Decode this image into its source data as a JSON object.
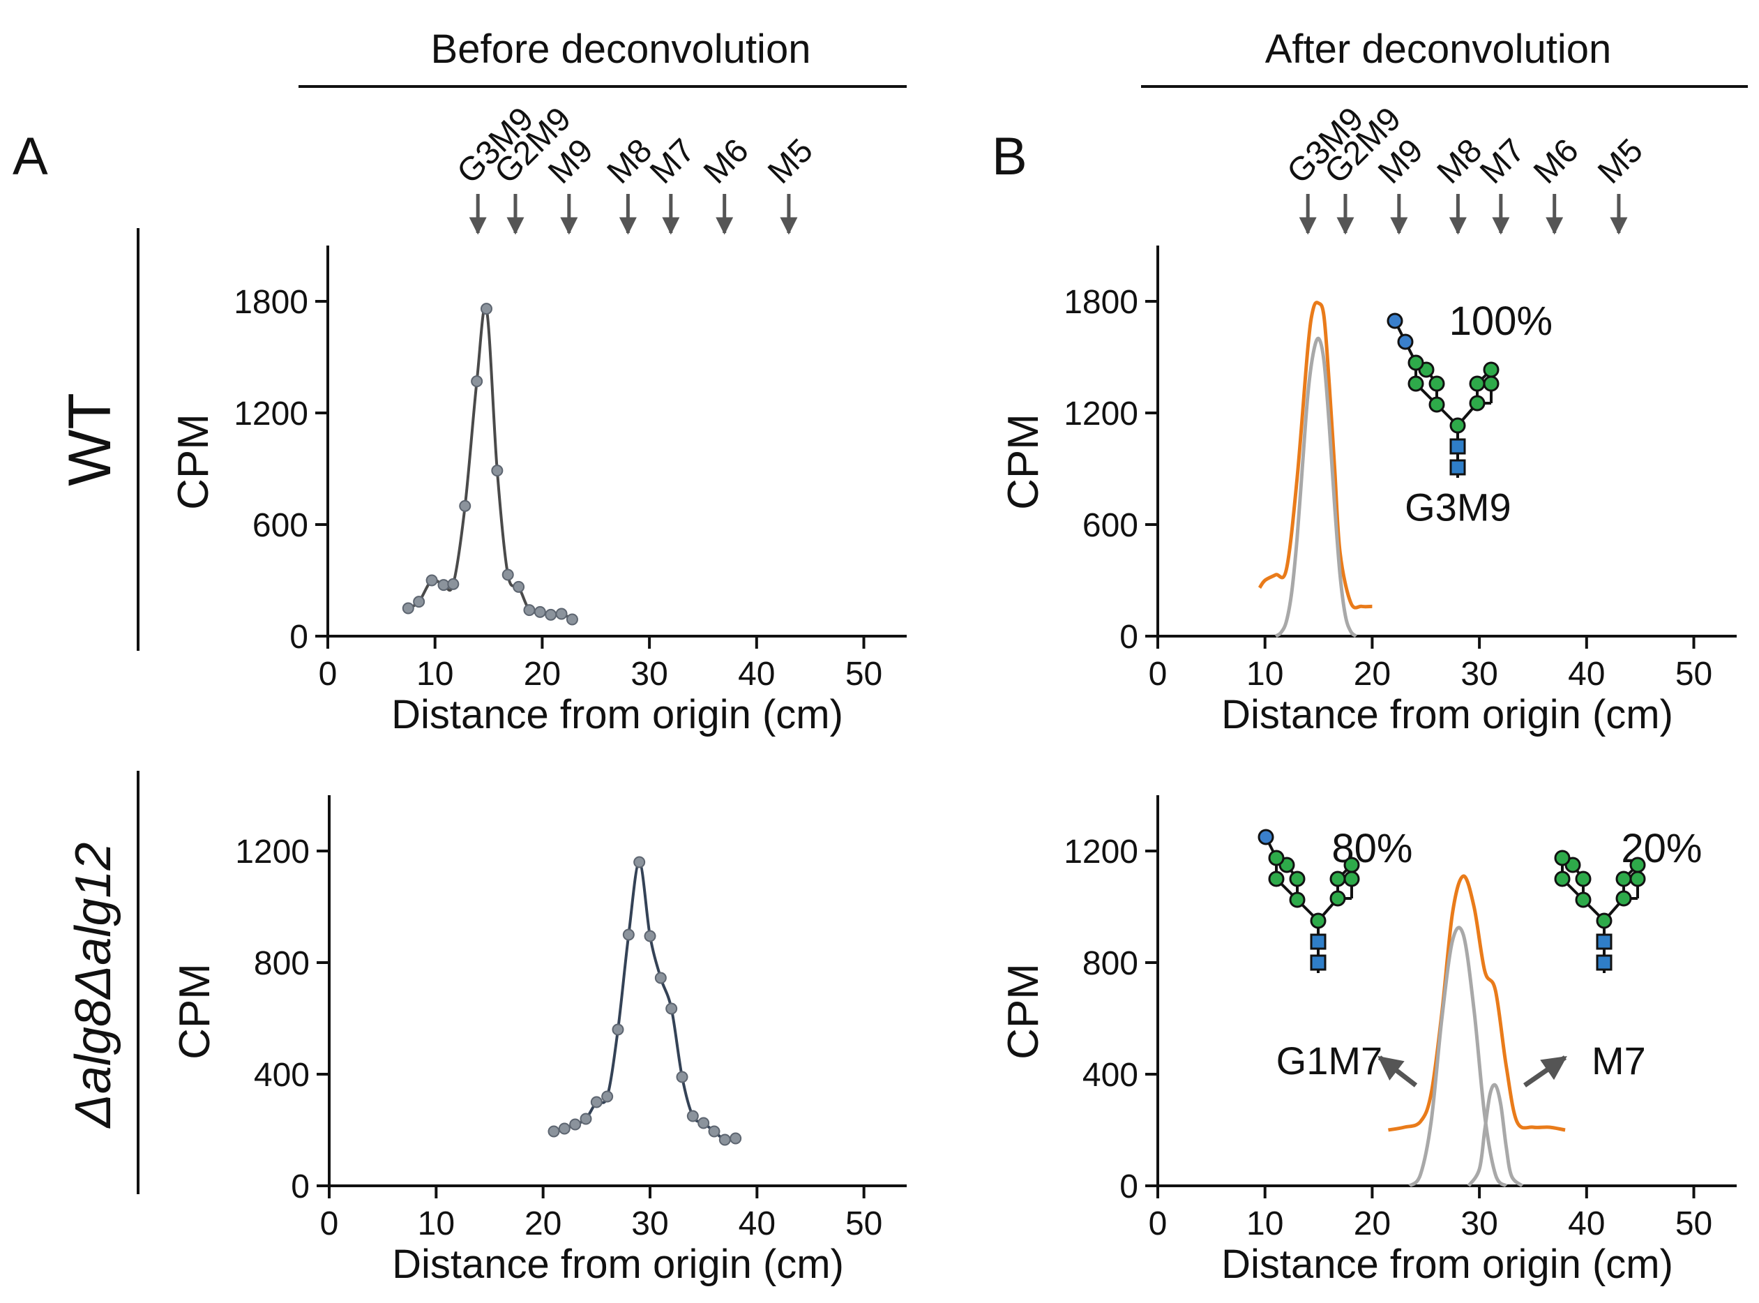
{
  "header": {
    "before_title": "Before deconvolution",
    "after_title": "After deconvolution",
    "panel_a": "A",
    "panel_b": "B",
    "row_top_label": "WT",
    "row_bottom_label": "Δalg8Δalg12"
  },
  "markers": {
    "labels": [
      "G3M9",
      "G2M9",
      "M9",
      "M8",
      "M7",
      "M6",
      "M5"
    ],
    "positions_cm": [
      14,
      17.5,
      22.5,
      28,
      32,
      37,
      43
    ]
  },
  "glycan": {
    "colors": {
      "mannose": "#2eaa4a",
      "glucose": "#3a7fcb",
      "glcnac": "#2f7ec8",
      "stroke": "#111111"
    }
  },
  "chart_data": [
    {
      "id": "wt-before",
      "type": "line",
      "xlabel": "Distance from origin (cm)",
      "ylabel": "CPM",
      "xlim": [
        0,
        54
      ],
      "ylim": [
        0,
        2100
      ],
      "xticks": [
        0,
        10,
        20,
        30,
        40,
        50
      ],
      "yticks": [
        0,
        600,
        1200,
        1800
      ],
      "series": [
        {
          "style": "points-line",
          "color": "#4a4a4a",
          "x": [
            7.5,
            8.5,
            9.7,
            10.8,
            11.7,
            12.8,
            13.9,
            14.8,
            15.8,
            16.8,
            17.8,
            18.8,
            19.8,
            20.8,
            21.8,
            22.8
          ],
          "y": [
            150,
            185,
            300,
            275,
            280,
            700,
            1370,
            1760,
            890,
            330,
            265,
            140,
            130,
            115,
            120,
            90
          ]
        }
      ]
    },
    {
      "id": "wt-after",
      "type": "line",
      "xlabel": "Distance from origin (cm)",
      "ylabel": "CPM",
      "xlim": [
        0,
        54
      ],
      "ylim": [
        0,
        2100
      ],
      "xticks": [
        0,
        10,
        20,
        30,
        40,
        50
      ],
      "yticks": [
        0,
        600,
        1200,
        1800
      ],
      "series": [
        {
          "style": "line",
          "color": "#e97b1a",
          "x": [
            9.5,
            10,
            11,
            12,
            13,
            14,
            14.5,
            15,
            15.5,
            16,
            16.5,
            17,
            18,
            19,
            20
          ],
          "y": [
            260,
            300,
            330,
            360,
            850,
            1550,
            1760,
            1790,
            1720,
            1350,
            900,
            450,
            180,
            160,
            160
          ]
        },
        {
          "style": "line",
          "color": "#a8a8a8",
          "x": [
            11,
            11.5,
            12,
            12.5,
            13,
            13.5,
            14,
            14.5,
            15,
            15.5,
            16,
            16.5,
            17,
            17.5,
            18,
            18.5
          ],
          "y": [
            0,
            20,
            80,
            240,
            530,
            920,
            1300,
            1520,
            1600,
            1480,
            1130,
            700,
            330,
            110,
            25,
            0
          ]
        }
      ],
      "annotations": [
        {
          "text": "100%",
          "x": 32,
          "y": 1620
        },
        {
          "text": "G3M9",
          "x": 28,
          "y": 620
        }
      ]
    },
    {
      "id": "mut-before",
      "type": "line",
      "xlabel": "Distance from origin (cm)",
      "ylabel": "CPM",
      "xlim": [
        0,
        54
      ],
      "ylim": [
        0,
        1400
      ],
      "xticks": [
        0,
        10,
        20,
        30,
        40,
        50
      ],
      "yticks": [
        0,
        400,
        800,
        1200
      ],
      "series": [
        {
          "style": "points-line",
          "color": "#344256",
          "x": [
            21,
            22,
            23,
            24,
            25,
            26,
            27,
            28,
            29,
            30,
            31,
            32,
            33,
            34,
            35,
            36,
            37,
            38
          ],
          "y": [
            195,
            205,
            220,
            240,
            300,
            320,
            560,
            900,
            1160,
            895,
            745,
            635,
            390,
            250,
            225,
            195,
            165,
            170
          ]
        }
      ]
    },
    {
      "id": "mut-after",
      "type": "line",
      "xlabel": "Distance from origin (cm)",
      "ylabel": "CPM",
      "xlim": [
        0,
        54
      ],
      "ylim": [
        0,
        1400
      ],
      "xticks": [
        0,
        10,
        20,
        30,
        40,
        50
      ],
      "yticks": [
        0,
        400,
        800,
        1200
      ],
      "series": [
        {
          "style": "line",
          "color": "#e97b1a",
          "x": [
            21.5,
            23,
            24.5,
            25.5,
            26.5,
            27.5,
            28.5,
            29.5,
            30.5,
            31.5,
            32.5,
            33.5,
            35,
            36.5,
            38
          ],
          "y": [
            200,
            210,
            230,
            330,
            620,
            980,
            1110,
            1000,
            770,
            700,
            430,
            230,
            210,
            210,
            200
          ]
        },
        {
          "style": "line",
          "color": "#a8a8a8",
          "x": [
            23.5,
            24.5,
            25.5,
            26.5,
            27.5,
            28.5,
            29.5,
            30.5,
            31.5,
            32.5
          ],
          "y": [
            0,
            40,
            230,
            600,
            880,
            900,
            630,
            250,
            40,
            0
          ]
        },
        {
          "style": "line",
          "color": "#a8a8a8",
          "x": [
            29,
            30,
            30.5,
            31,
            31.5,
            32,
            32.5,
            33,
            34
          ],
          "y": [
            0,
            60,
            200,
            330,
            360,
            290,
            140,
            35,
            0
          ]
        }
      ],
      "annotations": [
        {
          "text": "80%",
          "x": 20,
          "y": 1160
        },
        {
          "text": "20%",
          "x": 47,
          "y": 1160
        },
        {
          "text": "G1M7",
          "x": 16,
          "y": 400
        },
        {
          "text": "M7",
          "x": 43,
          "y": 400
        }
      ]
    }
  ]
}
